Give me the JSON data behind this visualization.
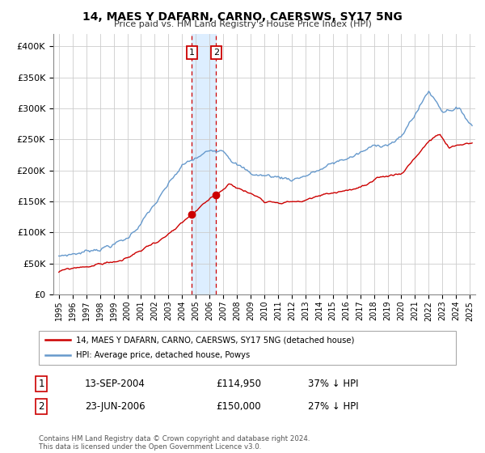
{
  "title": "14, MAES Y DAFARN, CARNO, CAERSWS, SY17 5NG",
  "subtitle": "Price paid vs. HM Land Registry's House Price Index (HPI)",
  "legend_line1": "14, MAES Y DAFARN, CARNO, CAERSWS, SY17 5NG (detached house)",
  "legend_line2": "HPI: Average price, detached house, Powys",
  "transaction1_label": "1",
  "transaction1_date": "13-SEP-2004",
  "transaction1_price": "£114,950",
  "transaction1_hpi": "37% ↓ HPI",
  "transaction1_year": 2004.71,
  "transaction1_value": 114950,
  "transaction2_label": "2",
  "transaction2_date": "23-JUN-2006",
  "transaction2_price": "£150,000",
  "transaction2_hpi": "27% ↓ HPI",
  "transaction2_year": 2006.48,
  "transaction2_value": 150000,
  "red_color": "#cc0000",
  "blue_color": "#6699cc",
  "shade_color": "#ddeeff",
  "footnote": "Contains HM Land Registry data © Crown copyright and database right 2024.\nThis data is licensed under the Open Government Licence v3.0.",
  "ylim": [
    0,
    420000
  ],
  "yticks": [
    0,
    50000,
    100000,
    150000,
    200000,
    250000,
    300000,
    350000,
    400000
  ],
  "ytick_labels": [
    "£0",
    "£50K",
    "£100K",
    "£150K",
    "£200K",
    "£250K",
    "£300K",
    "£350K",
    "£400K"
  ],
  "xlim_left": 1994.6,
  "xlim_right": 2025.4,
  "xtick_years": [
    1995,
    1996,
    1997,
    1998,
    1999,
    2000,
    2001,
    2002,
    2003,
    2004,
    2005,
    2006,
    2007,
    2008,
    2009,
    2010,
    2011,
    2012,
    2013,
    2014,
    2015,
    2016,
    2017,
    2018,
    2019,
    2020,
    2021,
    2022,
    2023,
    2024,
    2025
  ]
}
